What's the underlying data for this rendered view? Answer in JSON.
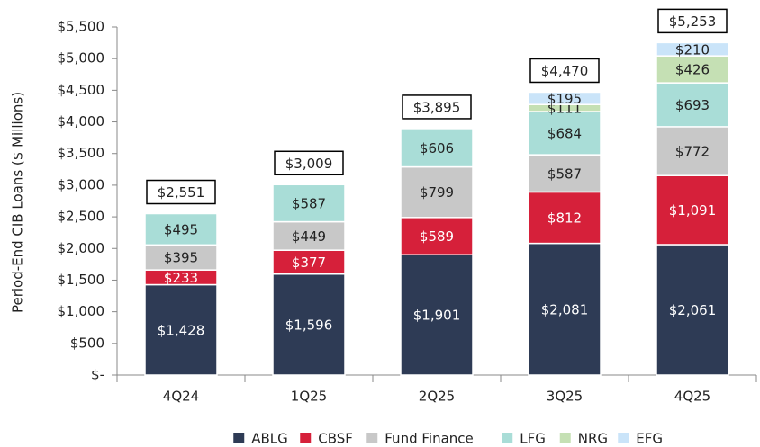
{
  "chart_data": {
    "type": "stacked-bar",
    "y_label": "Period-End CIB Loans ($ Millions)",
    "categories": [
      "4Q24",
      "1Q25",
      "2Q25",
      "3Q25",
      "4Q25"
    ],
    "series": [
      {
        "name": "ABLG",
        "color": "#2e3b55",
        "values": [
          1428,
          1596,
          1901,
          2081,
          2061
        ],
        "value_labels": [
          "$1,428",
          "$1,596",
          "$1,901",
          "$2,081",
          "$2,061"
        ]
      },
      {
        "name": "CBSF",
        "color": "#d6203a",
        "values": [
          233,
          377,
          589,
          812,
          1091
        ],
        "value_labels": [
          "$233",
          "$377",
          "$589",
          "$812",
          "$1,091"
        ]
      },
      {
        "name": "Fund Finance",
        "color": "#c8c8c8",
        "values": [
          395,
          449,
          799,
          587,
          772
        ],
        "value_labels": [
          "$395",
          "$449",
          "$799",
          "$587",
          "$772"
        ]
      },
      {
        "name": "LFG",
        "color": "#a9ddd7",
        "values": [
          495,
          587,
          606,
          684,
          693
        ],
        "value_labels": [
          "$495",
          "$587",
          "$606",
          "$684",
          "$693"
        ]
      },
      {
        "name": "NRG",
        "color": "#c5e0b4",
        "values": [
          null,
          null,
          null,
          111,
          426
        ],
        "value_labels": [
          null,
          null,
          null,
          "$111",
          "$426"
        ]
      },
      {
        "name": "EFG",
        "color": "#cae4f9",
        "values": [
          null,
          null,
          null,
          195,
          210
        ],
        "value_labels": [
          null,
          null,
          null,
          "$195",
          "$210"
        ]
      }
    ],
    "totals": [
      2551,
      3009,
      3895,
      4470,
      5253
    ],
    "total_labels": [
      "$2,551",
      "$3,009",
      "$3,895",
      "$4,470",
      "$5,253"
    ],
    "ylim": [
      0,
      5500
    ],
    "yticks": [
      {
        "value": 0,
        "label": "$-"
      },
      {
        "value": 500,
        "label": "$500"
      },
      {
        "value": 1000,
        "label": "$1,000"
      },
      {
        "value": 1500,
        "label": "$1,500"
      },
      {
        "value": 2000,
        "label": "$2,000"
      },
      {
        "value": 2500,
        "label": "$2,500"
      },
      {
        "value": 3000,
        "label": "$3,000"
      },
      {
        "value": 3500,
        "label": "$3,500"
      },
      {
        "value": 4000,
        "label": "$4,000"
      },
      {
        "value": 4500,
        "label": "$4,500"
      },
      {
        "value": 5000,
        "label": "$5,000"
      },
      {
        "value": 5500,
        "label": "$5,500"
      }
    ],
    "legend": "bottom"
  }
}
